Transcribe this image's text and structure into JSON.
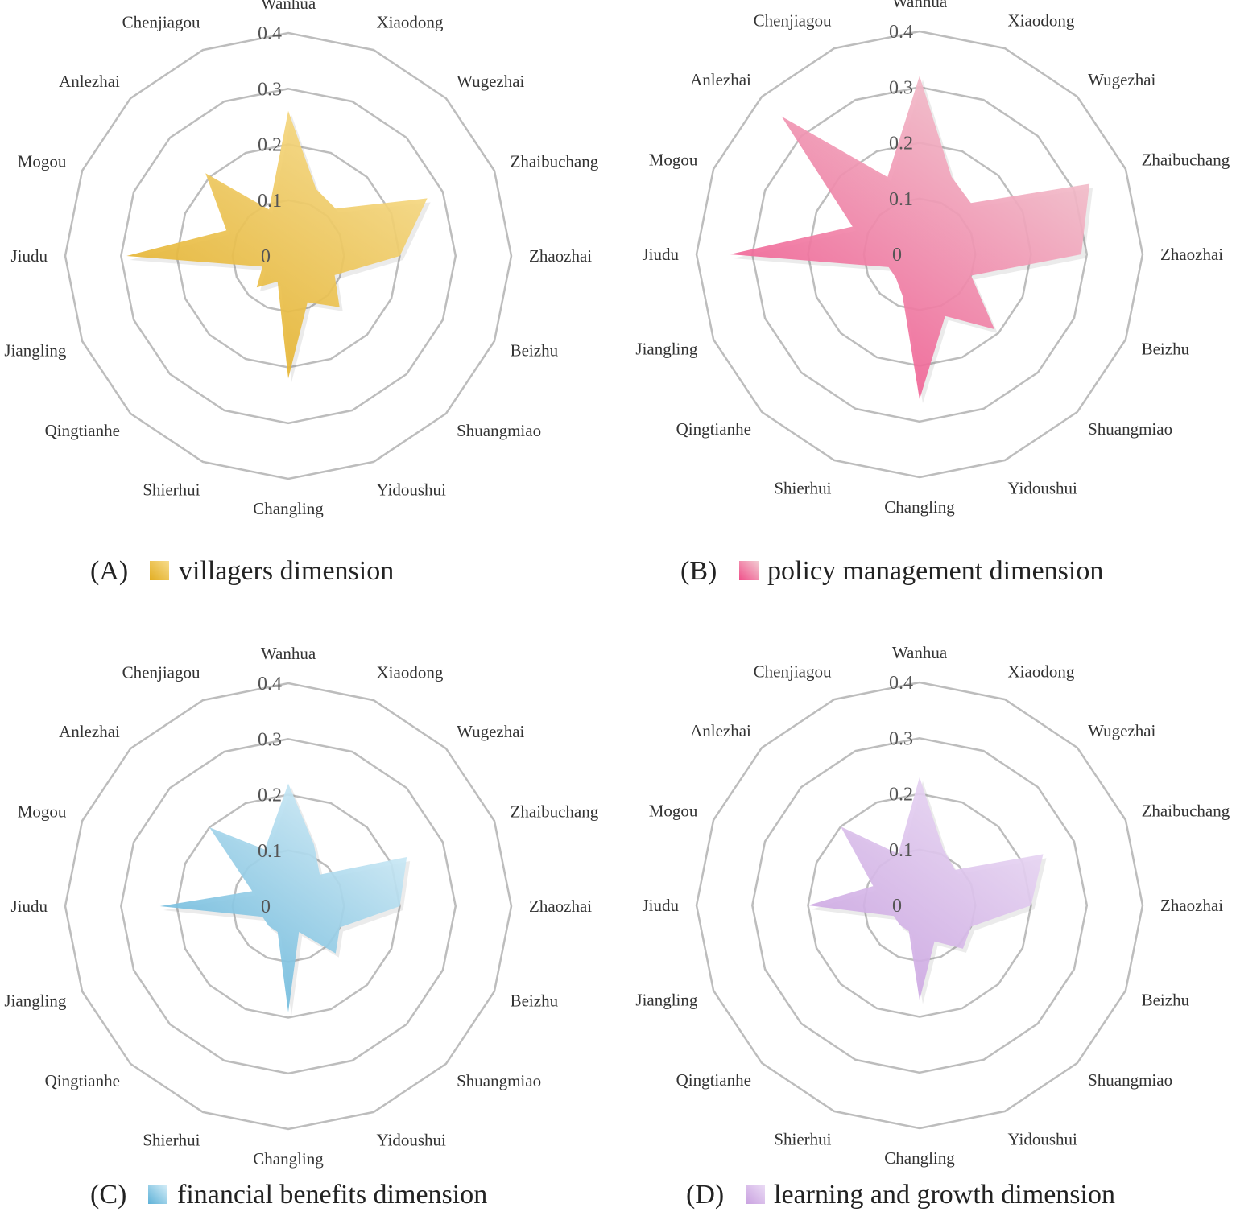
{
  "chart_data": [
    {
      "type": "radar",
      "panel_label": "(A)",
      "legend": "villagers dimension",
      "color_light": "#f7dc8c",
      "color_dark": "#e2ad22",
      "categories": [
        "Wanhua",
        "Xiaodong",
        "Wugezhai",
        "Zhaibuchang",
        "Zhaozhai",
        "Beizhu",
        "Shuangmiao",
        "Yidoushui",
        "Changling",
        "Shierhui",
        "Qingtianhe",
        "Jiangling",
        "Jiudu",
        "Mogou",
        "Anlezhai",
        "Chenjiagou"
      ],
      "values": [
        0.26,
        0.13,
        0.12,
        0.27,
        0.2,
        0.09,
        0.13,
        0.09,
        0.22,
        0.05,
        0.08,
        0.05,
        0.29,
        0.12,
        0.21,
        0.09
      ],
      "rlim": [
        0,
        0.4
      ],
      "ticks": [
        "0",
        "0.1",
        "0.2",
        "0.3",
        "0.4"
      ]
    },
    {
      "type": "radar",
      "panel_label": "(B)",
      "legend": "policy management dimension",
      "color_light": "#f2cbd2",
      "color_dark": "#f0508a",
      "categories": [
        "Wanhua",
        "Xiaodong",
        "Wugezhai",
        "Zhaibuchang",
        "Zhaozhai",
        "Beizhu",
        "Shuangmiao",
        "Yidoushui",
        "Changling",
        "Shierhui",
        "Qingtianhe",
        "Jiangling",
        "Jiudu",
        "Mogou",
        "Anlezhai",
        "Chenjiagou"
      ],
      "values": [
        0.32,
        0.15,
        0.13,
        0.33,
        0.29,
        0.1,
        0.19,
        0.12,
        0.26,
        0.08,
        0.06,
        0.06,
        0.34,
        0.13,
        0.35,
        0.15
      ],
      "rlim": [
        0,
        0.4
      ],
      "ticks": [
        "0",
        "0.1",
        "0.2",
        "0.3",
        "0.4"
      ]
    },
    {
      "type": "radar",
      "panel_label": "(C)",
      "legend": "financial benefits dimension",
      "color_light": "#d6eef8",
      "color_dark": "#5fb2d8",
      "categories": [
        "Wanhua",
        "Xiaodong",
        "Wugezhai",
        "Zhaibuchang",
        "Zhaozhai",
        "Beizhu",
        "Shuangmiao",
        "Yidoushui",
        "Changling",
        "Shierhui",
        "Qingtianhe",
        "Jiangling",
        "Jiudu",
        "Mogou",
        "Anlezhai",
        "Chenjiagou"
      ],
      "values": [
        0.22,
        0.12,
        0.08,
        0.23,
        0.2,
        0.1,
        0.12,
        0.05,
        0.19,
        0.05,
        0.05,
        0.05,
        0.23,
        0.07,
        0.2,
        0.11
      ],
      "rlim": [
        0,
        0.4
      ],
      "ticks": [
        "0",
        "0.1",
        "0.2",
        "0.3",
        "0.4"
      ]
    },
    {
      "type": "radar",
      "panel_label": "(D)",
      "legend": "learning and growth dimension",
      "color_light": "#ebdcf5",
      "color_dark": "#c9a1e0",
      "categories": [
        "Wanhua",
        "Xiaodong",
        "Wugezhai",
        "Zhaibuchang",
        "Zhaozhai",
        "Beizhu",
        "Shuangmiao",
        "Yidoushui",
        "Changling",
        "Shierhui",
        "Qingtianhe",
        "Jiangling",
        "Jiudu",
        "Mogou",
        "Anlezhai",
        "Chenjiagou"
      ],
      "values": [
        0.23,
        0.11,
        0.09,
        0.24,
        0.2,
        0.1,
        0.11,
        0.07,
        0.17,
        0.05,
        0.05,
        0.05,
        0.2,
        0.09,
        0.2,
        0.1
      ],
      "rlim": [
        0,
        0.4
      ],
      "ticks": [
        "0",
        "0.1",
        "0.2",
        "0.3",
        "0.4"
      ]
    }
  ]
}
